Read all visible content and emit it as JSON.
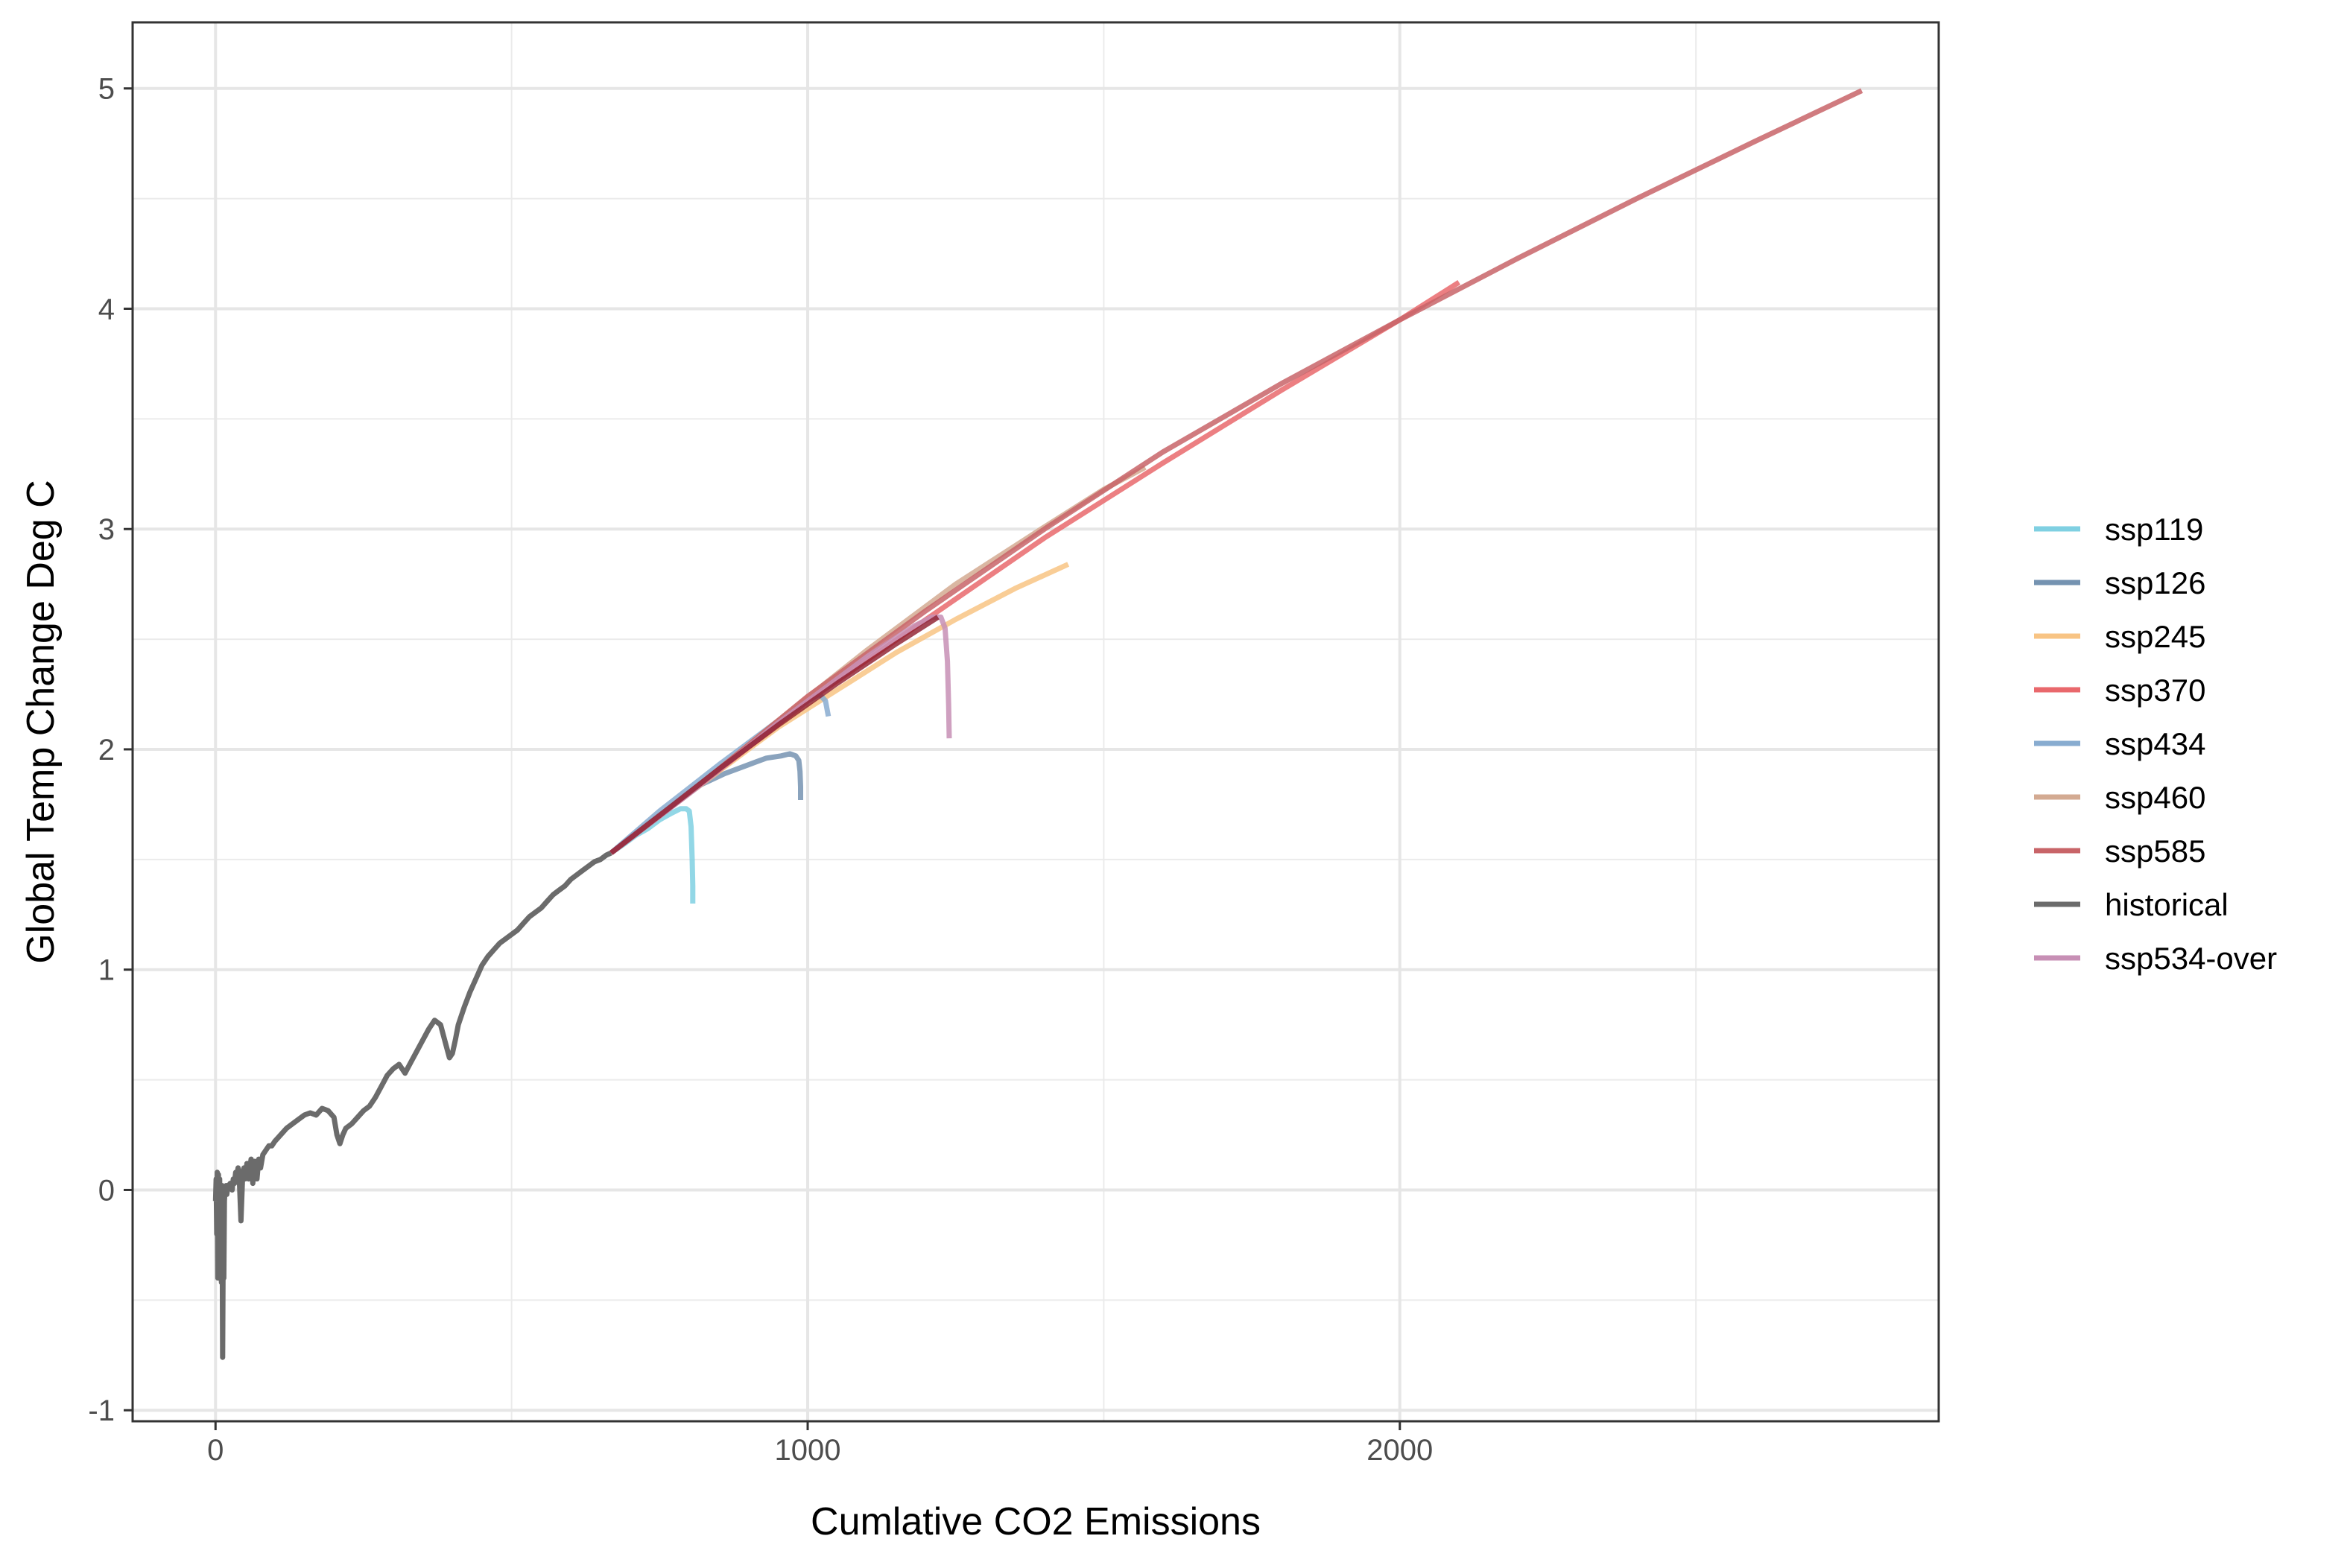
{
  "chart_data": {
    "type": "line",
    "title": "",
    "xlabel": "Cumlative CO2 Emissions",
    "ylabel": "Global Temp Change Deg C",
    "xlim": [
      -140,
      2910
    ],
    "ylim": [
      -1.05,
      5.3
    ],
    "x_ticks": [
      0,
      1000,
      2000
    ],
    "x_tick_labels": [
      "0",
      "1000",
      "2000"
    ],
    "x_minor_ticks": [
      500,
      1500,
      2500
    ],
    "y_ticks": [
      -1,
      0,
      1,
      2,
      3,
      4,
      5
    ],
    "y_tick_labels": [
      "-1",
      "0",
      "1",
      "2",
      "3",
      "4",
      "5"
    ],
    "y_minor_ticks": [
      -0.5,
      0.5,
      1.5,
      2.5,
      3.5,
      4.5
    ],
    "grid": true,
    "legend_position": "right",
    "series": [
      {
        "name": "historical",
        "color": "#6b6b6b",
        "x": [
          0,
          1,
          2,
          3,
          4,
          5,
          6,
          7,
          8,
          9,
          10,
          11,
          12,
          13,
          14,
          15,
          16,
          17,
          18,
          19,
          20,
          22,
          25,
          28,
          30,
          32,
          34,
          36,
          38,
          40,
          43,
          46,
          48,
          50,
          53,
          56,
          60,
          63,
          66,
          70,
          73,
          76,
          80,
          85,
          90,
          95,
          100,
          110,
          120,
          130,
          140,
          150,
          160,
          170,
          180,
          190,
          200,
          205,
          210,
          215,
          220,
          230,
          240,
          250,
          260,
          270,
          280,
          290,
          300,
          310,
          320,
          330,
          340,
          350,
          360,
          370,
          380,
          390,
          395,
          400,
          405,
          410,
          420,
          430,
          440,
          450,
          460,
          470,
          480,
          490,
          500,
          510,
          520,
          530,
          540,
          550,
          560,
          570,
          580,
          590,
          600,
          610,
          620,
          630,
          640,
          650,
          660,
          668
        ],
        "y": [
          -0.05,
          0.05,
          -0.2,
          0.08,
          -0.4,
          0.07,
          -0.35,
          0.05,
          -0.3,
          0.0,
          -0.42,
          0.02,
          -0.76,
          -0.2,
          -0.4,
          -0.05,
          0.0,
          -0.02,
          0.02,
          -0.02,
          0.0,
          0.02,
          0.03,
          0.0,
          0.05,
          0.03,
          0.08,
          0.06,
          0.1,
          0.06,
          -0.14,
          0.08,
          0.1,
          0.05,
          0.12,
          0.05,
          0.14,
          0.03,
          0.13,
          0.05,
          0.14,
          0.1,
          0.16,
          0.18,
          0.2,
          0.2,
          0.22,
          0.25,
          0.28,
          0.3,
          0.32,
          0.34,
          0.35,
          0.34,
          0.37,
          0.36,
          0.33,
          0.25,
          0.21,
          0.25,
          0.28,
          0.3,
          0.33,
          0.36,
          0.38,
          0.42,
          0.47,
          0.52,
          0.55,
          0.57,
          0.53,
          0.58,
          0.63,
          0.68,
          0.73,
          0.77,
          0.75,
          0.65,
          0.6,
          0.62,
          0.68,
          0.75,
          0.83,
          0.9,
          0.96,
          1.02,
          1.06,
          1.09,
          1.12,
          1.14,
          1.16,
          1.18,
          1.21,
          1.24,
          1.26,
          1.28,
          1.31,
          1.34,
          1.36,
          1.38,
          1.41,
          1.43,
          1.45,
          1.47,
          1.49,
          1.5,
          1.52,
          1.53
        ]
      },
      {
        "name": "ssp119",
        "color": "#7fd0e2",
        "x": [
          668,
          690,
          710,
          730,
          750,
          770,
          785,
          795,
          800,
          803,
          805,
          806,
          806
        ],
        "y": [
          1.53,
          1.57,
          1.61,
          1.64,
          1.68,
          1.71,
          1.73,
          1.73,
          1.72,
          1.65,
          1.5,
          1.38,
          1.3
        ]
      },
      {
        "name": "ssp126",
        "color": "#7593b1",
        "x": [
          668,
          700,
          740,
          780,
          820,
          860,
          900,
          930,
          955,
          970,
          980,
          985,
          987,
          988,
          988
        ],
        "y": [
          1.53,
          1.6,
          1.68,
          1.76,
          1.84,
          1.89,
          1.93,
          1.96,
          1.97,
          1.98,
          1.97,
          1.95,
          1.9,
          1.83,
          1.77
        ]
      },
      {
        "name": "ssp245",
        "color": "#f8c484",
        "x": [
          668,
          750,
          850,
          950,
          1050,
          1150,
          1250,
          1350,
          1440
        ],
        "y": [
          1.53,
          1.7,
          1.9,
          2.1,
          2.27,
          2.44,
          2.59,
          2.73,
          2.84
        ]
      },
      {
        "name": "ssp434",
        "color": "#88acd0",
        "x": [
          668,
          750,
          850,
          950,
          1000,
          1020,
          1030,
          1035
        ],
        "y": [
          1.53,
          1.72,
          1.93,
          2.13,
          2.22,
          2.25,
          2.22,
          2.15
        ]
      },
      {
        "name": "ssp460",
        "color": "#d3aa92",
        "x": [
          668,
          800,
          950,
          1100,
          1250,
          1400,
          1500,
          1570
        ],
        "y": [
          1.53,
          1.8,
          2.13,
          2.45,
          2.75,
          3.01,
          3.18,
          3.28
        ]
      },
      {
        "name": "ssp370",
        "color": "#e9686c",
        "x": [
          668,
          800,
          1000,
          1200,
          1400,
          1600,
          1800,
          2000,
          2100
        ],
        "y": [
          1.53,
          1.8,
          2.22,
          2.59,
          2.96,
          3.3,
          3.63,
          3.95,
          4.12
        ]
      },
      {
        "name": "ssp585",
        "color": "#c86468",
        "x": [
          668,
          800,
          1000,
          1200,
          1400,
          1600,
          1800,
          2000,
          2200,
          2400,
          2600,
          2780
        ],
        "y": [
          1.53,
          1.8,
          2.24,
          2.63,
          3.0,
          3.35,
          3.66,
          3.95,
          4.23,
          4.5,
          4.76,
          4.99
        ]
      },
      {
        "name": "ssp534-over",
        "color": "#c78fb5",
        "x": [
          668,
          800,
          950,
          1100,
          1180,
          1210,
          1225,
          1232,
          1236,
          1238,
          1239
        ],
        "y": [
          1.53,
          1.8,
          2.12,
          2.42,
          2.56,
          2.6,
          2.6,
          2.55,
          2.4,
          2.2,
          2.05
        ]
      }
    ],
    "overlap_segment": {
      "color": "#8c1a2a",
      "x": [
        668,
        750,
        850,
        950,
        1050,
        1150,
        1220
      ],
      "y": [
        1.53,
        1.7,
        1.91,
        2.11,
        2.3,
        2.48,
        2.6
      ]
    },
    "legend": [
      {
        "name": "ssp119",
        "color": "#7fd0e2"
      },
      {
        "name": "ssp126",
        "color": "#7593b1"
      },
      {
        "name": "ssp245",
        "color": "#f8c484"
      },
      {
        "name": "ssp370",
        "color": "#e9686c"
      },
      {
        "name": "ssp434",
        "color": "#88acd0"
      },
      {
        "name": "ssp460",
        "color": "#d3aa92"
      },
      {
        "name": "ssp585",
        "color": "#c86468"
      },
      {
        "name": "historical",
        "color": "#6b6b6b"
      },
      {
        "name": "ssp534-over",
        "color": "#c78fb5"
      }
    ]
  }
}
